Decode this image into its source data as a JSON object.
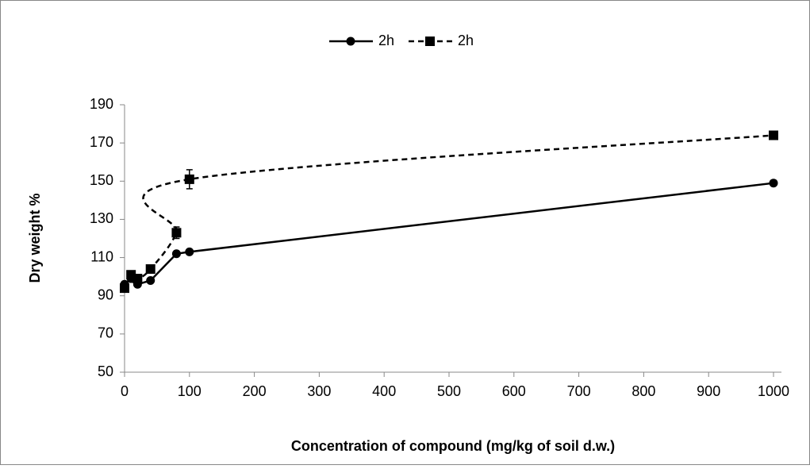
{
  "chart_data": {
    "type": "line",
    "x_label": "Concentration of compound (mg/kg of soil d.w.)",
    "y_label": "Dry weight %",
    "xlim": [
      0,
      1000
    ],
    "xticks": [
      0,
      100,
      200,
      300,
      400,
      500,
      600,
      700,
      800,
      900,
      1000
    ],
    "ylim": [
      50,
      190
    ],
    "yticks": [
      50,
      70,
      90,
      110,
      130,
      150,
      170,
      190
    ],
    "grid": false,
    "legend": "top",
    "series": [
      {
        "name": "2h",
        "color": "#000000",
        "dash": "solid",
        "marker": "circle",
        "smooth": false,
        "x": [
          0,
          10,
          20,
          40,
          80,
          100,
          1000
        ],
        "values": [
          96,
          99,
          96,
          98,
          112,
          113,
          149
        ]
      },
      {
        "name": "2h",
        "color": "#000000",
        "dash": "dashed",
        "marker": "square",
        "smooth": true,
        "x": [
          0,
          10,
          20,
          40,
          80,
          100,
          1000
        ],
        "values": [
          94,
          101,
          99,
          104,
          123,
          151,
          174
        ],
        "errors": [
          1,
          2,
          2,
          1,
          3,
          5,
          1
        ]
      }
    ]
  }
}
